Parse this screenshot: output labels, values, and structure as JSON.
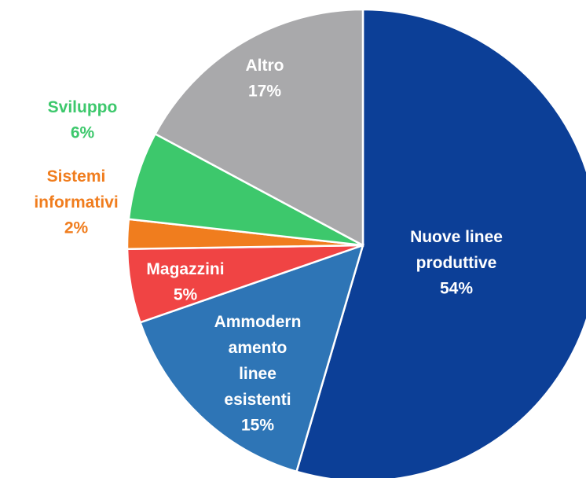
{
  "chart_data": {
    "type": "pie",
    "categories": [
      "Nuove linee\nproduttive",
      "Ammodern\namento\nlinee\nesistenti",
      "Magazzini",
      "Sistemi\ninformativi",
      "Sviluppo",
      "Altro"
    ],
    "values": [
      54,
      15,
      5,
      2,
      6,
      17
    ],
    "value_labels": [
      "54%",
      "15%",
      "5%",
      "2%",
      "6%",
      "17%"
    ],
    "colors": [
      "#0c3f97",
      "#2e75b6",
      "#f04444",
      "#f07d1e",
      "#3dc86c",
      "#a9a9ab"
    ],
    "label_colors": [
      "#ffffff",
      "#ffffff",
      "#ffffff",
      "#f07d1e",
      "#3dc86c",
      "#ffffff"
    ]
  }
}
